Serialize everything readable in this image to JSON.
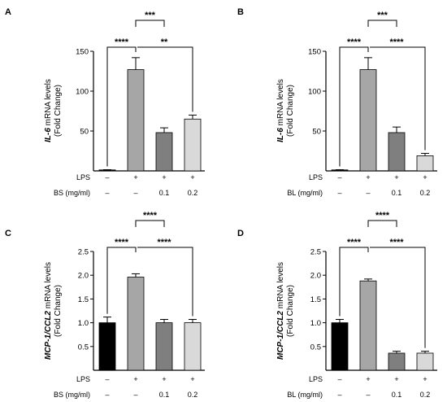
{
  "chart_data": [
    {
      "panel": "A",
      "type": "bar",
      "ylabel_italic": "IL-6",
      "ylabel_rest": " mRNA levels",
      "ylabel_line2": "(Fold Change)",
      "ylim": [
        0,
        150
      ],
      "yticks": [
        "50",
        "100",
        "150"
      ],
      "values": [
        1,
        127,
        48,
        65
      ],
      "errors": [
        0.5,
        15,
        6,
        5
      ],
      "colors": [
        "#000000",
        "#a6a6a6",
        "#7f7f7f",
        "#d9d9d9"
      ],
      "rows": [
        {
          "label": "LPS",
          "cells": [
            "–",
            "+",
            "+",
            "+"
          ]
        },
        {
          "label": "BS (mg/ml)",
          "cells": [
            "–",
            "–",
            "0.1",
            "0.2"
          ]
        }
      ],
      "comparisons": [
        {
          "from": 0,
          "to": 1,
          "label": "****"
        },
        {
          "from": 1,
          "to": 2,
          "label": "***"
        },
        {
          "from": 1,
          "to": 3,
          "label": "**"
        }
      ]
    },
    {
      "panel": "B",
      "type": "bar",
      "ylabel_italic": "IL-6",
      "ylabel_rest": " mRNA levels",
      "ylabel_line2": "(Fold Change)",
      "ylim": [
        0,
        150
      ],
      "yticks": [
        "50",
        "100",
        "150"
      ],
      "values": [
        1,
        127,
        48,
        19
      ],
      "errors": [
        0.5,
        15,
        7,
        3
      ],
      "colors": [
        "#000000",
        "#a6a6a6",
        "#7f7f7f",
        "#d9d9d9"
      ],
      "rows": [
        {
          "label": "LPS",
          "cells": [
            "–",
            "+",
            "+",
            "+"
          ]
        },
        {
          "label": "BL (mg/ml)",
          "cells": [
            "–",
            "–",
            "0.1",
            "0.2"
          ]
        }
      ],
      "comparisons": [
        {
          "from": 0,
          "to": 1,
          "label": "****"
        },
        {
          "from": 1,
          "to": 2,
          "label": "***"
        },
        {
          "from": 1,
          "to": 3,
          "label": "****"
        }
      ]
    },
    {
      "panel": "C",
      "type": "bar",
      "ylabel_italic": "MCP-1/CCL2",
      "ylabel_rest": " mRNA levels",
      "ylabel_line2": "(Fold Change)",
      "ylim": [
        0,
        2.5
      ],
      "yticks": [
        "0.5",
        "1.0",
        "1.5",
        "2.0",
        "2.5"
      ],
      "values": [
        1.0,
        1.96,
        1.0,
        1.0
      ],
      "errors": [
        0.12,
        0.07,
        0.07,
        0.07
      ],
      "colors": [
        "#000000",
        "#a6a6a6",
        "#7f7f7f",
        "#d9d9d9"
      ],
      "rows": [
        {
          "label": "LPS",
          "cells": [
            "–",
            "+",
            "+",
            "+"
          ]
        },
        {
          "label": "BS (mg/ml)",
          "cells": [
            "–",
            "–",
            "0.1",
            "0.2"
          ]
        }
      ],
      "comparisons": [
        {
          "from": 0,
          "to": 1,
          "label": "****"
        },
        {
          "from": 1,
          "to": 2,
          "label": "****"
        },
        {
          "from": 1,
          "to": 3,
          "label": "****"
        }
      ]
    },
    {
      "panel": "D",
      "type": "bar",
      "ylabel_italic": "MCP-1/CCL2",
      "ylabel_rest": " mRNA levels",
      "ylabel_line2": "(Fold Change)",
      "ylim": [
        0,
        2.5
      ],
      "yticks": [
        "0.5",
        "1.0",
        "1.5",
        "2.0",
        "2.5"
      ],
      "values": [
        1.0,
        1.88,
        0.36,
        0.36
      ],
      "errors": [
        0.07,
        0.04,
        0.04,
        0.04
      ],
      "colors": [
        "#000000",
        "#a6a6a6",
        "#7f7f7f",
        "#d9d9d9"
      ],
      "rows": [
        {
          "label": "LPS",
          "cells": [
            "–",
            "+",
            "+",
            "+"
          ]
        },
        {
          "label": "BL (mg/ml)",
          "cells": [
            "–",
            "–",
            "0.1",
            "0.2"
          ]
        }
      ],
      "comparisons": [
        {
          "from": 0,
          "to": 1,
          "label": "****"
        },
        {
          "from": 1,
          "to": 2,
          "label": "****"
        },
        {
          "from": 1,
          "to": 3,
          "label": "****"
        }
      ]
    }
  ]
}
